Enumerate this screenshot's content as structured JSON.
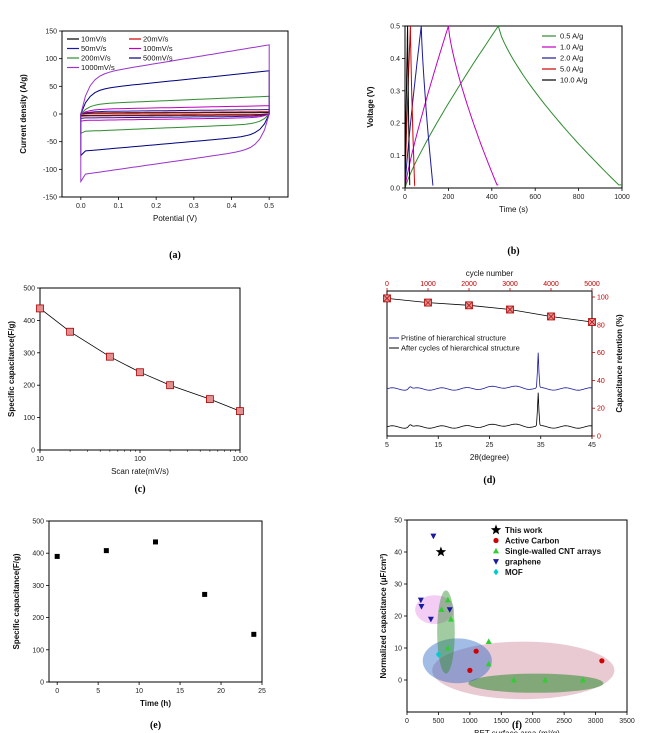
{
  "colors": {
    "black": "#000000",
    "red": "#d00000",
    "blue": "#1a1a9e",
    "green": "#2e8b2e",
    "magenta": "#c000c0",
    "navy": "#000080",
    "violet": "#9933cc",
    "lime": "#33cc33",
    "cyan": "#00cccc",
    "redtick": "#c00000",
    "marker": "#e09090"
  },
  "chart_data": [
    {
      "type": "line",
      "caption": "(a)",
      "xlabel": "Potential (V)",
      "ylabel": "Current density (A/g)",
      "xlim": [
        -0.05,
        0.55
      ],
      "ylim": [
        -150,
        150
      ],
      "xticks": [
        "0.0",
        "0.1",
        "0.2",
        "0.3",
        "0.4",
        "0.5"
      ],
      "yticks": [
        "-150",
        "-100",
        "-50",
        "0",
        "50",
        "100",
        "150"
      ],
      "legend_position": "top-left",
      "series": [
        {
          "name": "10mV/s",
          "color": "black",
          "top": 2.5,
          "bottom": -2.5
        },
        {
          "name": "20mV/s",
          "color": "red",
          "top": 4,
          "bottom": -4
        },
        {
          "name": "50mV/s",
          "color": "blue",
          "top": 8,
          "bottom": -8
        },
        {
          "name": "100mV/s",
          "color": "magenta",
          "top": 15,
          "bottom": -13
        },
        {
          "name": "200mV/s",
          "color": "green",
          "top": 32,
          "bottom": -35
        },
        {
          "name": "500mV/s",
          "color": "navy",
          "top": 78,
          "bottom": -75
        },
        {
          "name": "1000mV/s",
          "color": "violet",
          "top": 125,
          "bottom": -122
        }
      ]
    },
    {
      "type": "line",
      "caption": "(b)",
      "xlabel": "Time (s)",
      "ylabel": "Voltage (V)",
      "xlim": [
        0,
        1000
      ],
      "ylim": [
        0,
        0.5
      ],
      "xticks": [
        "0",
        "200",
        "400",
        "600",
        "800",
        "1000"
      ],
      "yticks": [
        "0.0",
        "0.1",
        "0.2",
        "0.3",
        "0.4",
        "0.5"
      ],
      "legend_position": "top-right",
      "series": [
        {
          "name": "0.5   A/g",
          "color": "green",
          "peak": 430,
          "end": 1000
        },
        {
          "name": "1.0   A/g",
          "color": "magenta",
          "peak": 200,
          "end": 430
        },
        {
          "name": "2.0   A/g",
          "color": "blue",
          "peak": 75,
          "end": 130
        },
        {
          "name": "5.0   A/g",
          "color": "red",
          "peak": 25,
          "end": 45
        },
        {
          "name": "10.0   A/g",
          "color": "black",
          "peak": 12,
          "end": 22
        }
      ]
    },
    {
      "type": "line",
      "caption": "(c)",
      "xlabel": "Scan rate(mV/s)",
      "ylabel": "Specific capacitance(F/g)",
      "xscale": "log",
      "xlim": [
        10,
        1000
      ],
      "ylim": [
        0,
        500
      ],
      "xticks": [
        "10",
        "100",
        "1000"
      ],
      "yticks": [
        "0",
        "100",
        "200",
        "300",
        "400",
        "500"
      ],
      "x": [
        10,
        20,
        50,
        100,
        200,
        500,
        1000
      ],
      "y": [
        437,
        365,
        288,
        240,
        200,
        157,
        120
      ]
    },
    {
      "type": "line",
      "caption": "(d)",
      "xlabel": "2θ(degree)",
      "x2label": "cycle number",
      "y2label": "Capacitance retention (%)",
      "xlim": [
        5,
        45
      ],
      "x2lim": [
        0,
        5000
      ],
      "y2lim": [
        0,
        100
      ],
      "xticks": [
        "5",
        "15",
        "25",
        "35",
        "45"
      ],
      "x2ticks": [
        "0",
        "1000",
        "2000",
        "3000",
        "4000",
        "5000"
      ],
      "y2ticks": [
        "0",
        "20",
        "40",
        "60",
        "80",
        "100"
      ],
      "retention_x": [
        0,
        1000,
        2000,
        3000,
        4000,
        5000
      ],
      "retention_y": [
        99,
        96,
        94,
        91,
        86,
        82
      ],
      "legend_position": "middle-left",
      "series": [
        {
          "name": "Pristine of hierarchical structure",
          "color": "blue"
        },
        {
          "name": "After cycles of hierarchical structure",
          "color": "black"
        }
      ],
      "peak_at": 34.5
    },
    {
      "type": "scatter",
      "caption": "(e)",
      "xlabel": "Time (h)",
      "ylabel": "Specific capacitance(F/g)",
      "xlim": [
        -1,
        25
      ],
      "ylim": [
        0,
        500
      ],
      "xticks": [
        "0",
        "5",
        "10",
        "15",
        "20",
        "25"
      ],
      "yticks": [
        "0",
        "100",
        "200",
        "300",
        "400",
        "500"
      ],
      "x": [
        0,
        6,
        12,
        18,
        24
      ],
      "y": [
        390,
        408,
        435,
        272,
        148
      ]
    },
    {
      "type": "scatter",
      "caption": "(f)",
      "xlabel": "BET surface area (m²/g)",
      "ylabel": "Normalized capacitance (μF/cm²)",
      "xlim": [
        0,
        3500
      ],
      "ylim": [
        -10,
        50
      ],
      "xticks": [
        "0",
        "500",
        "1000",
        "1500",
        "2000",
        "2500",
        "3000",
        "3500"
      ],
      "yticks": [
        "0",
        "10",
        "20",
        "30",
        "40",
        "50"
      ],
      "legend_position": "top-right",
      "series": [
        {
          "name": "This work",
          "color": "black",
          "marker": "star",
          "points": [
            [
              540,
              40
            ]
          ]
        },
        {
          "name": "Active Carbon",
          "color": "red",
          "marker": "circle",
          "points": [
            [
              3100,
              6
            ],
            [
              1100,
              9
            ],
            [
              1000,
              3
            ]
          ]
        },
        {
          "name": "Single-walled CNT arrays",
          "color": "lime",
          "marker": "triangle-up",
          "points": [
            [
              550,
              22
            ],
            [
              650,
              25
            ],
            [
              700,
              19
            ],
            [
              650,
              10
            ],
            [
              1300,
              12
            ],
            [
              1300,
              5
            ],
            [
              1700,
              0
            ],
            [
              2200,
              0
            ],
            [
              2800,
              0
            ]
          ]
        },
        {
          "name": "graphene",
          "color": "blue",
          "marker": "triangle-down",
          "points": [
            [
              420,
              45
            ],
            [
              220,
              25
            ],
            [
              230,
              23
            ],
            [
              380,
              19
            ],
            [
              680,
              22
            ]
          ]
        },
        {
          "name": "MOF",
          "color": "cyan",
          "marker": "diamond",
          "points": [
            [
              500,
              8
            ]
          ]
        }
      ]
    }
  ]
}
